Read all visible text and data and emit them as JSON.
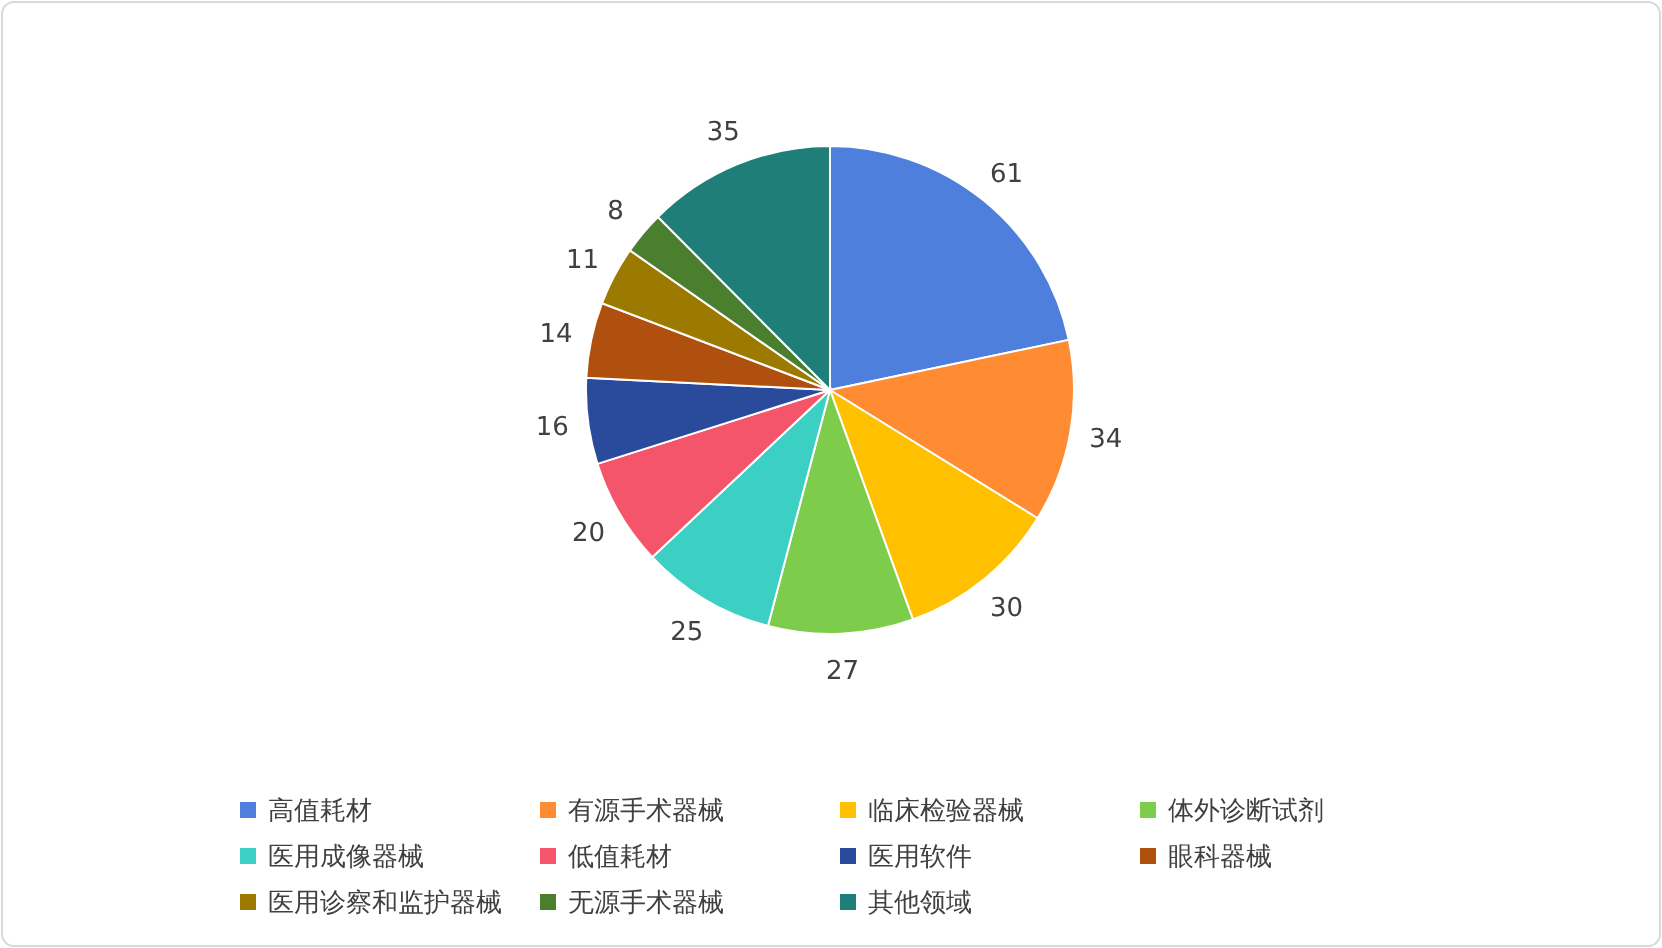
{
  "chart_data": {
    "type": "pie",
    "categories": [
      "高值耗材",
      "有源手术器械",
      "临床检验器械",
      "体外诊断试剂",
      "医用成像器械",
      "低值耗材",
      "医用软件",
      "眼科器械",
      "医用诊察和监护器械",
      "无源手术器械",
      "其他领域"
    ],
    "values": [
      61,
      34,
      30,
      27,
      25,
      20,
      16,
      14,
      11,
      8,
      35
    ],
    "colors": [
      "#4f7fdc",
      "#ff8c33",
      "#ffc000",
      "#7dcc4b",
      "#3ccfc4",
      "#f4556b",
      "#2a4b9b",
      "#b0500e",
      "#9c7a00",
      "#4a7f30",
      "#1f7f78"
    ],
    "data_labels": true,
    "legend": "bottom"
  }
}
